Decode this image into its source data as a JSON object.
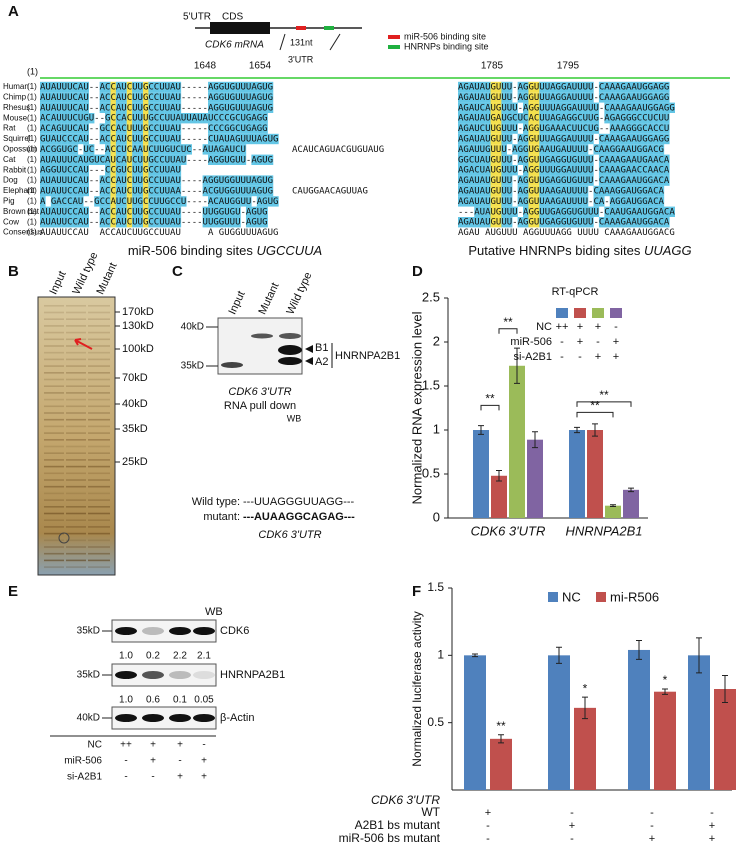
{
  "figure": {
    "panel_labels": [
      "A",
      "B",
      "C",
      "D",
      "E",
      "F"
    ],
    "panel_a": {
      "gene": {
        "utr5": "5'UTR",
        "cds": "CDS",
        "mrna": "CDK6 mRNA",
        "length": "131nt",
        "utr3": "3'UTR"
      },
      "legend": [
        "miR-506 binding site",
        "HNRNPs binding site"
      ],
      "header_index": "(1)",
      "positions": [
        "1648",
        "1654",
        "1785",
        "1795"
      ],
      "rows": [
        {
          "species": "Human",
          "index": "(1)",
          "left": "AUAUUUCAU--ACCAUCUUGCCUUAU-----AGGUGUUUAGUG",
          "right": "AGAUAUGUUU-AGGUUUAGGAUUUU-CAAAGAAUGGAGG"
        },
        {
          "species": "Chimp",
          "index": "(1)",
          "left": "AUAUUUCAU--ACCAUCUUGCCUUAU-----AGGUGUUUAGUG",
          "right": "AGAUAUGUUU-AGGUUUAGGAUUUU-CAAAGAAUGGAGG"
        },
        {
          "species": "Rhesus",
          "index": "(1)",
          "left": "AUAUUUCAU--ACCAUCUUGCCUUAU-----AGGUGUUUAGUG",
          "right": "AGAUCAUGUUU-AGGUUUAGGAUUUU-CAAAGAAUGGAGG"
        },
        {
          "species": "Mouse",
          "index": "(1)",
          "left": "ACAUUUCUGU--GCCACUUUGCCUUAUUAUAUCCCGCUGAGG",
          "right": "AGAUAUGAUGCUCACUUAGAGGCUUG-AGAGGGCCUCUU"
        },
        {
          "species": "Rat",
          "index": "(1)",
          "left": "ACAGUUCAU--GCCACUUUGCCUUAU-----CCCGGCUGAGG",
          "right": "AGAUCUUGUUU-AGGUGAAACUUCUG--AAAGGGCACCU"
        },
        {
          "species": "Squirrel",
          "index": "(1)",
          "left": "GUAUCCCAU--ACCAUCUUGCCUUAU-----CUAUAGUUUAGUG",
          "right": "AGAUAUGUUU-AGGUUUAGGAUUUU-CAAAGAAUGGAGG"
        },
        {
          "species": "Opossum",
          "index": "(1)",
          "left": "ACGGUGC-UC--ACCUCAAUCUUGUCUC--AUAGAUCU",
          "middle": "ACAUCAGUACGUGUAUG",
          "right": "AGAUUGUUU-AGGUGAAUGAUUUU-CAAGGAAUGGACG"
        },
        {
          "species": "Cat",
          "index": "(1)",
          "left": "AUAUUUCAUGUCAUCAUCUUGCCUUAU----AGGUGUU-AGUG",
          "right": "GGCUAUGUUU-AGGUUGAGGUGUUU-CAAAGAAUGAACA"
        },
        {
          "species": "Rabbit",
          "index": "(1)",
          "left": "AGGUUCCAU---CCGUCUUGCCUUAU",
          "right": "AGACUAUGUUU-AGGUUUGGAUUUU-CAAAGAACCAACA"
        },
        {
          "species": "Dog",
          "index": "(1)",
          "left": "AUAUUUCAU--ACCAUCUUGCCUUAU----AGGUGGUUUAGUG",
          "right": "AGAUAUGUUU-AGGUUGAGGUGUUU-CAAAGAAUGGACA"
        },
        {
          "species": "Elephant",
          "index": "(1)",
          "left": "AUAUUCCAU--ACCAUCUUGCCUUAA----ACGUGGUUUAGUG",
          "middle": "CAUGGAACAGUUAG",
          "right": "AGAUAUGUUU-AGGUUAAGAUUUU-CAAAGGAUGGACA"
        },
        {
          "species": "Pig",
          "index": "(1)",
          "left": "A GACCAU--GCCAUCUUGCCUUGCCU----ACAUGGUU-AGUG",
          "right": "AGAUAUGUUU-AGGUUAAGAUUUU-CA-AGGAUGGACA"
        },
        {
          "species": "Brown bat",
          "index": "(1)",
          "left": "AUAUUCCAU--ACCAUCUUGCCUUAU----UUGGUGU-AGUG",
          "right": "---AUAUGUUU-AGGUUGAGGUGUUU-CAAUGAAUGGACA"
        },
        {
          "species": "Cow",
          "index": "(1)",
          "left": "AUAUUCCAU--ACCAUCUUGCCUUAU----UUGGUUU-AGUG",
          "right": "AGAUAUGUUU-AGGUUGAGGUGUUU-CAAAGAAUGGACA"
        },
        {
          "species": "Consensus",
          "index": "(1)",
          "left": "AUAUUCCAU  ACCAUCUUGCCUUAU     A GUGGUUUAGUG",
          "right": "AGAU AUGUUU AGGUUUAGG UUUU CAAAGAAUGGACG"
        }
      ],
      "captions": [
        {
          "text": "miR-506 binding sites ",
          "motif": "UGCCUUA"
        },
        {
          "text": "Putative HNRNPs biding sites ",
          "motif": "UUAGG"
        }
      ]
    },
    "panel_b": {
      "lanes": [
        "Input",
        "Wild type",
        "Mutant"
      ],
      "markers": [
        "170kD",
        "130kD",
        "100kD",
        "70kD",
        "40kD",
        "35kD",
        "25kD"
      ]
    },
    "panel_c": {
      "lanes": [
        "Input",
        "Mutant",
        "Wild type"
      ],
      "markers": [
        "40kD",
        "35kD"
      ],
      "bands": [
        "B1",
        "A2"
      ],
      "protein": "HNRNPA2B1",
      "caption": [
        "CDK6  3'UTR",
        "RNA pull down"
      ],
      "wb": "WB",
      "sequences": [
        {
          "label": "Wild type:",
          "seq": "---UUAGGGUUAGG---"
        },
        {
          "label": "mutant:",
          "seq": "---AUAAGGCAGAG---"
        }
      ],
      "seq_caption": "CDK6  3'UTR"
    },
    "panel_e": {
      "wb": "WB",
      "blots": [
        {
          "marker": "35kD",
          "name": "CDK6",
          "quant": [
            "1.0",
            "0.2",
            "2.2",
            "2.1"
          ]
        },
        {
          "marker": "35kD",
          "name": "HNRNPA2B1",
          "quant": [
            "1.0",
            "0.6",
            "0.1",
            "0.05"
          ]
        },
        {
          "marker": "40kD",
          "name": "β-Actin"
        }
      ],
      "conditions": [
        {
          "label": "NC",
          "marks": [
            "++",
            "+",
            "+",
            "-"
          ]
        },
        {
          "label": "miR-506",
          "marks": [
            "-",
            "+",
            "-",
            "+"
          ]
        },
        {
          "label": "si-A2B1",
          "marks": [
            "-",
            "-",
            "+",
            "+"
          ]
        }
      ]
    }
  },
  "chart_data": [
    {
      "type": "bar",
      "title": "RT-qPCR",
      "ylabel": "Normalized RNA expression  level",
      "categories": [
        "CDK6 3'UTR",
        "HNRNPA2B1"
      ],
      "series": [
        {
          "color": "#4f81bd",
          "values": [
            1.0,
            1.0
          ],
          "errors": [
            0.05,
            0.03
          ]
        },
        {
          "color": "#c0504d",
          "values": [
            0.48,
            1.0
          ],
          "errors": [
            0.06,
            0.07
          ]
        },
        {
          "color": "#9bbb59",
          "values": [
            1.73,
            0.14
          ],
          "errors": [
            0.2,
            0.01
          ]
        },
        {
          "color": "#8064a2",
          "values": [
            0.89,
            0.32
          ],
          "errors": [
            0.09,
            0.02
          ]
        }
      ],
      "ylim": [
        0,
        2.5
      ],
      "yticks": [
        0,
        0.5,
        1,
        1.5,
        2,
        2.5
      ],
      "annotations": [
        "**",
        "**",
        "**",
        "**"
      ],
      "conditions": [
        {
          "label": "NC",
          "marks": [
            "++",
            "+",
            "+",
            "-"
          ]
        },
        {
          "label": "miR-506",
          "marks": [
            "-",
            "+",
            "-",
            "+"
          ]
        },
        {
          "label": "si-A2B1",
          "marks": [
            "-",
            "-",
            "+",
            "+"
          ]
        }
      ]
    },
    {
      "type": "bar",
      "ylabel": "Normalized luciferase activity",
      "categories": [
        null,
        null,
        null,
        null
      ],
      "series": [
        {
          "name": "NC",
          "color": "#4f81bd",
          "values": [
            1.0,
            1.0,
            1.04,
            1.0
          ],
          "errors": [
            0.01,
            0.06,
            0.07,
            0.13
          ]
        },
        {
          "name": "mi-R506",
          "color": "#c0504d",
          "values": [
            0.38,
            0.61,
            0.73,
            0.75
          ],
          "errors": [
            0.03,
            0.08,
            0.02,
            0.1
          ]
        }
      ],
      "ylim": [
        0,
        1.5
      ],
      "yticks": [
        0.5,
        1,
        1.5
      ],
      "annotations": [
        "**",
        "*",
        "*"
      ],
      "conditions_title": "CDK6 3'UTR",
      "conditions": [
        {
          "label": "WT",
          "marks": [
            "+",
            "-",
            "-",
            "-"
          ]
        },
        {
          "label": "A2B1 bs mutant",
          "marks": [
            "-",
            "+",
            "-",
            "+"
          ]
        },
        {
          "label": "miR-506 bs mutant",
          "marks": [
            "-",
            "-",
            "+",
            "+"
          ]
        }
      ]
    }
  ]
}
